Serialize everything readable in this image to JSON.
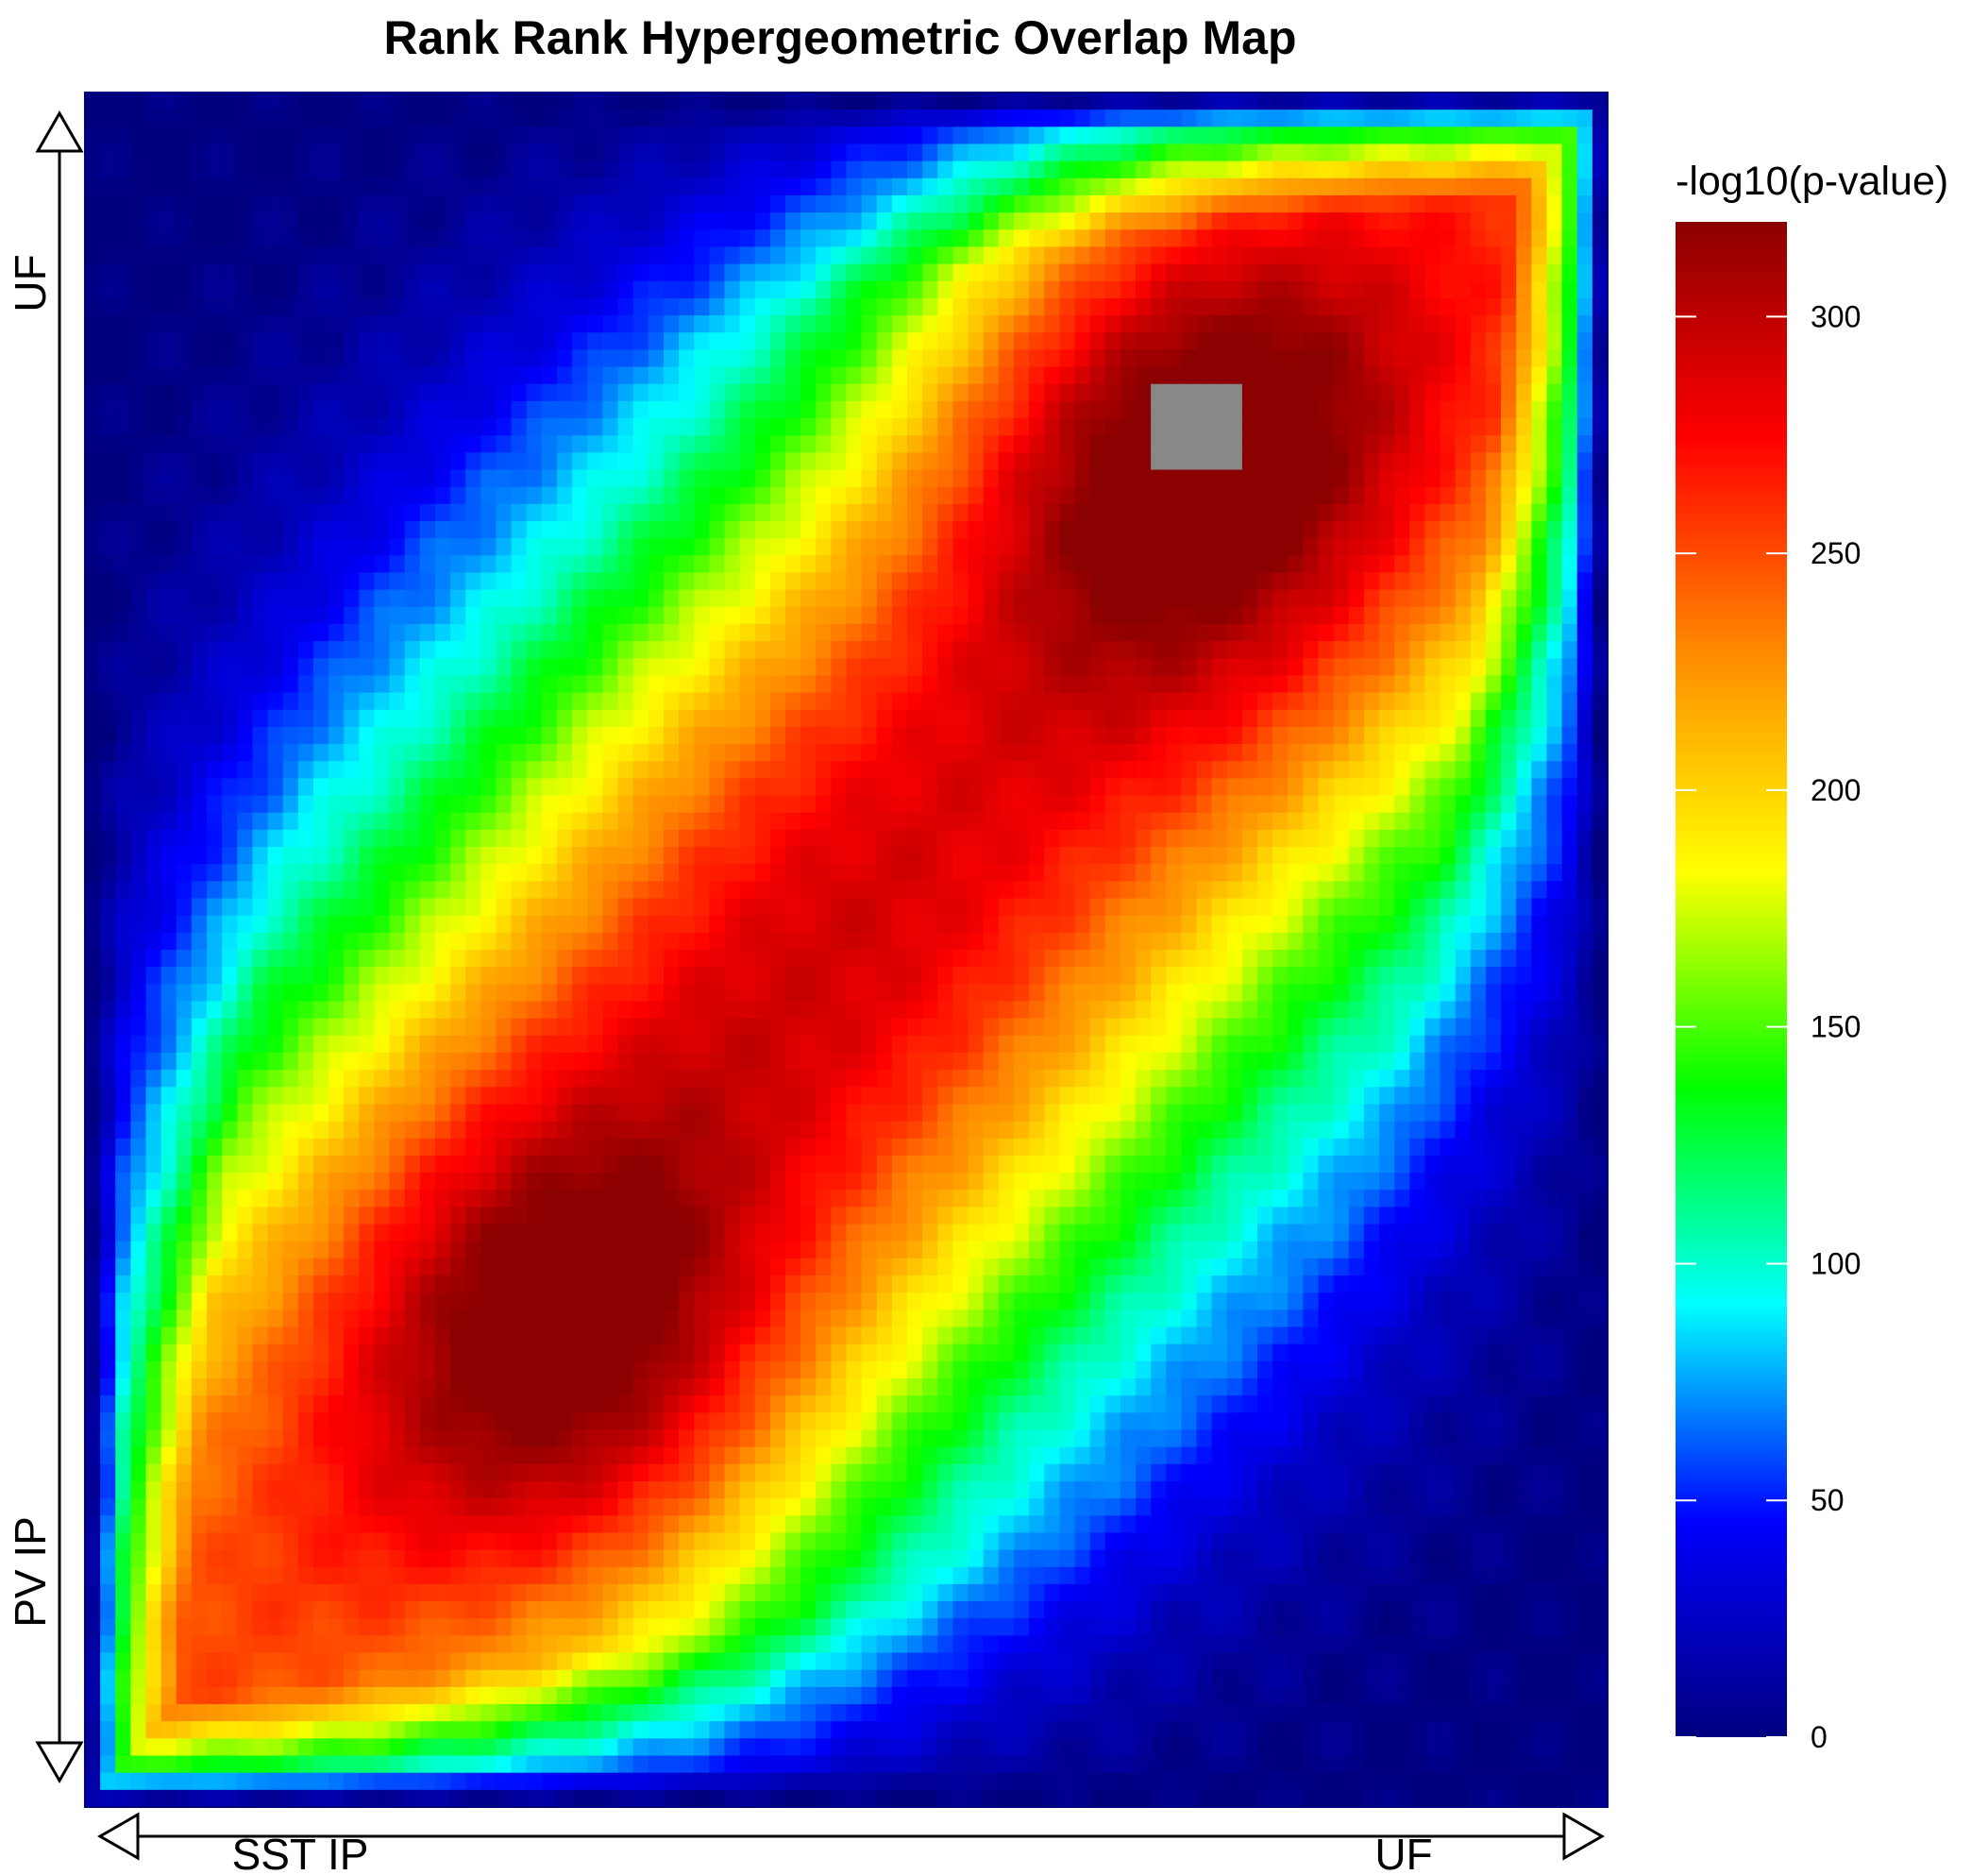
{
  "chart_data": {
    "type": "heatmap",
    "title": "Rank Rank Hypergeometric Overlap Map",
    "x_axis": {
      "start_label": "SST IP",
      "end_label": "UF"
    },
    "y_axis": {
      "start_label": "PV IP",
      "end_label": "UF"
    },
    "colorbar": {
      "title": "-log10(p-value)",
      "range": [
        0,
        320
      ],
      "ticks": [
        0,
        50,
        100,
        150,
        200,
        250,
        300
      ],
      "colors": [
        "#00007f",
        "#0000ff",
        "#00ffff",
        "#00ff00",
        "#ffff00",
        "#ff8c00",
        "#ff0000",
        "#8b0000"
      ]
    },
    "grid": {
      "rows": 100,
      "cols": 100,
      "x_range": [
        0,
        1
      ],
      "y_range": [
        0,
        1
      ]
    },
    "peaks": [
      {
        "region": "UF / UF (upper-right)",
        "x": 0.72,
        "y": 0.8,
        "value": 320
      },
      {
        "region": "SST IP / PV IP (lower-left)",
        "x": 0.32,
        "y": 0.27,
        "value": 300
      },
      {
        "region": "center",
        "x": 0.48,
        "y": 0.52,
        "value": 270
      }
    ],
    "masked": {
      "label": "NA",
      "color": "#888888",
      "x": 0.73,
      "y": 0.8
    }
  }
}
